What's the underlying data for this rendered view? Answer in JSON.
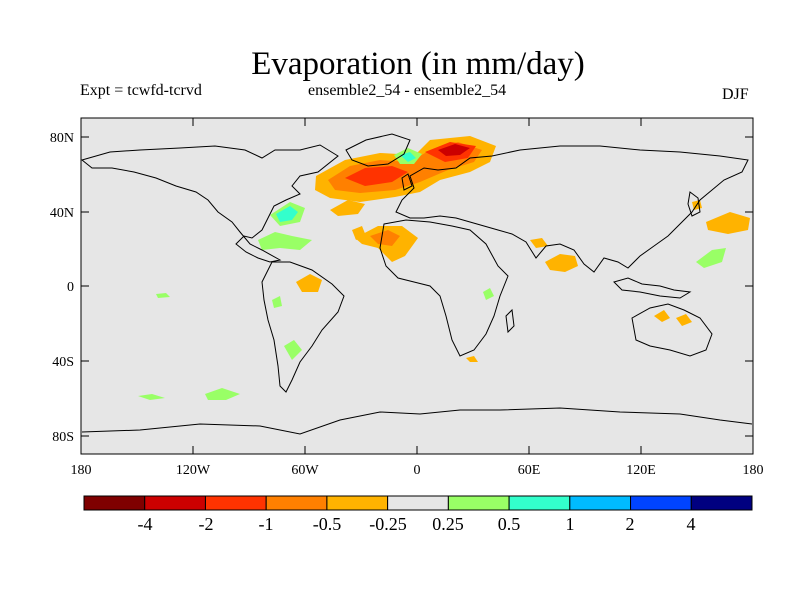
{
  "title": "Evaporation (in mm/day)",
  "subtitle_left": "Expt = tcwfd-tcrvd",
  "subtitle_center": "ensemble2_54 - ensemble2_54",
  "subtitle_right": "DJF",
  "map": {
    "background": "#e6e6e6",
    "y_ticks": [
      "80N",
      "40N",
      "0",
      "40S",
      "80S"
    ],
    "x_ticks": [
      "180",
      "120W",
      "60W",
      "0",
      "60E",
      "120E",
      "180"
    ]
  },
  "colorbar": {
    "colors": [
      "#7f0000",
      "#cc0000",
      "#ff3300",
      "#ff8000",
      "#ffb300",
      "#e6e6e6",
      "#99ff66",
      "#33ffcc",
      "#00bbff",
      "#0044ff",
      "#000080"
    ],
    "labels": [
      "-4",
      "-2",
      "-1",
      "-0.5",
      "-0.25",
      "0.25",
      "0.5",
      "1",
      "2",
      "4"
    ]
  }
}
